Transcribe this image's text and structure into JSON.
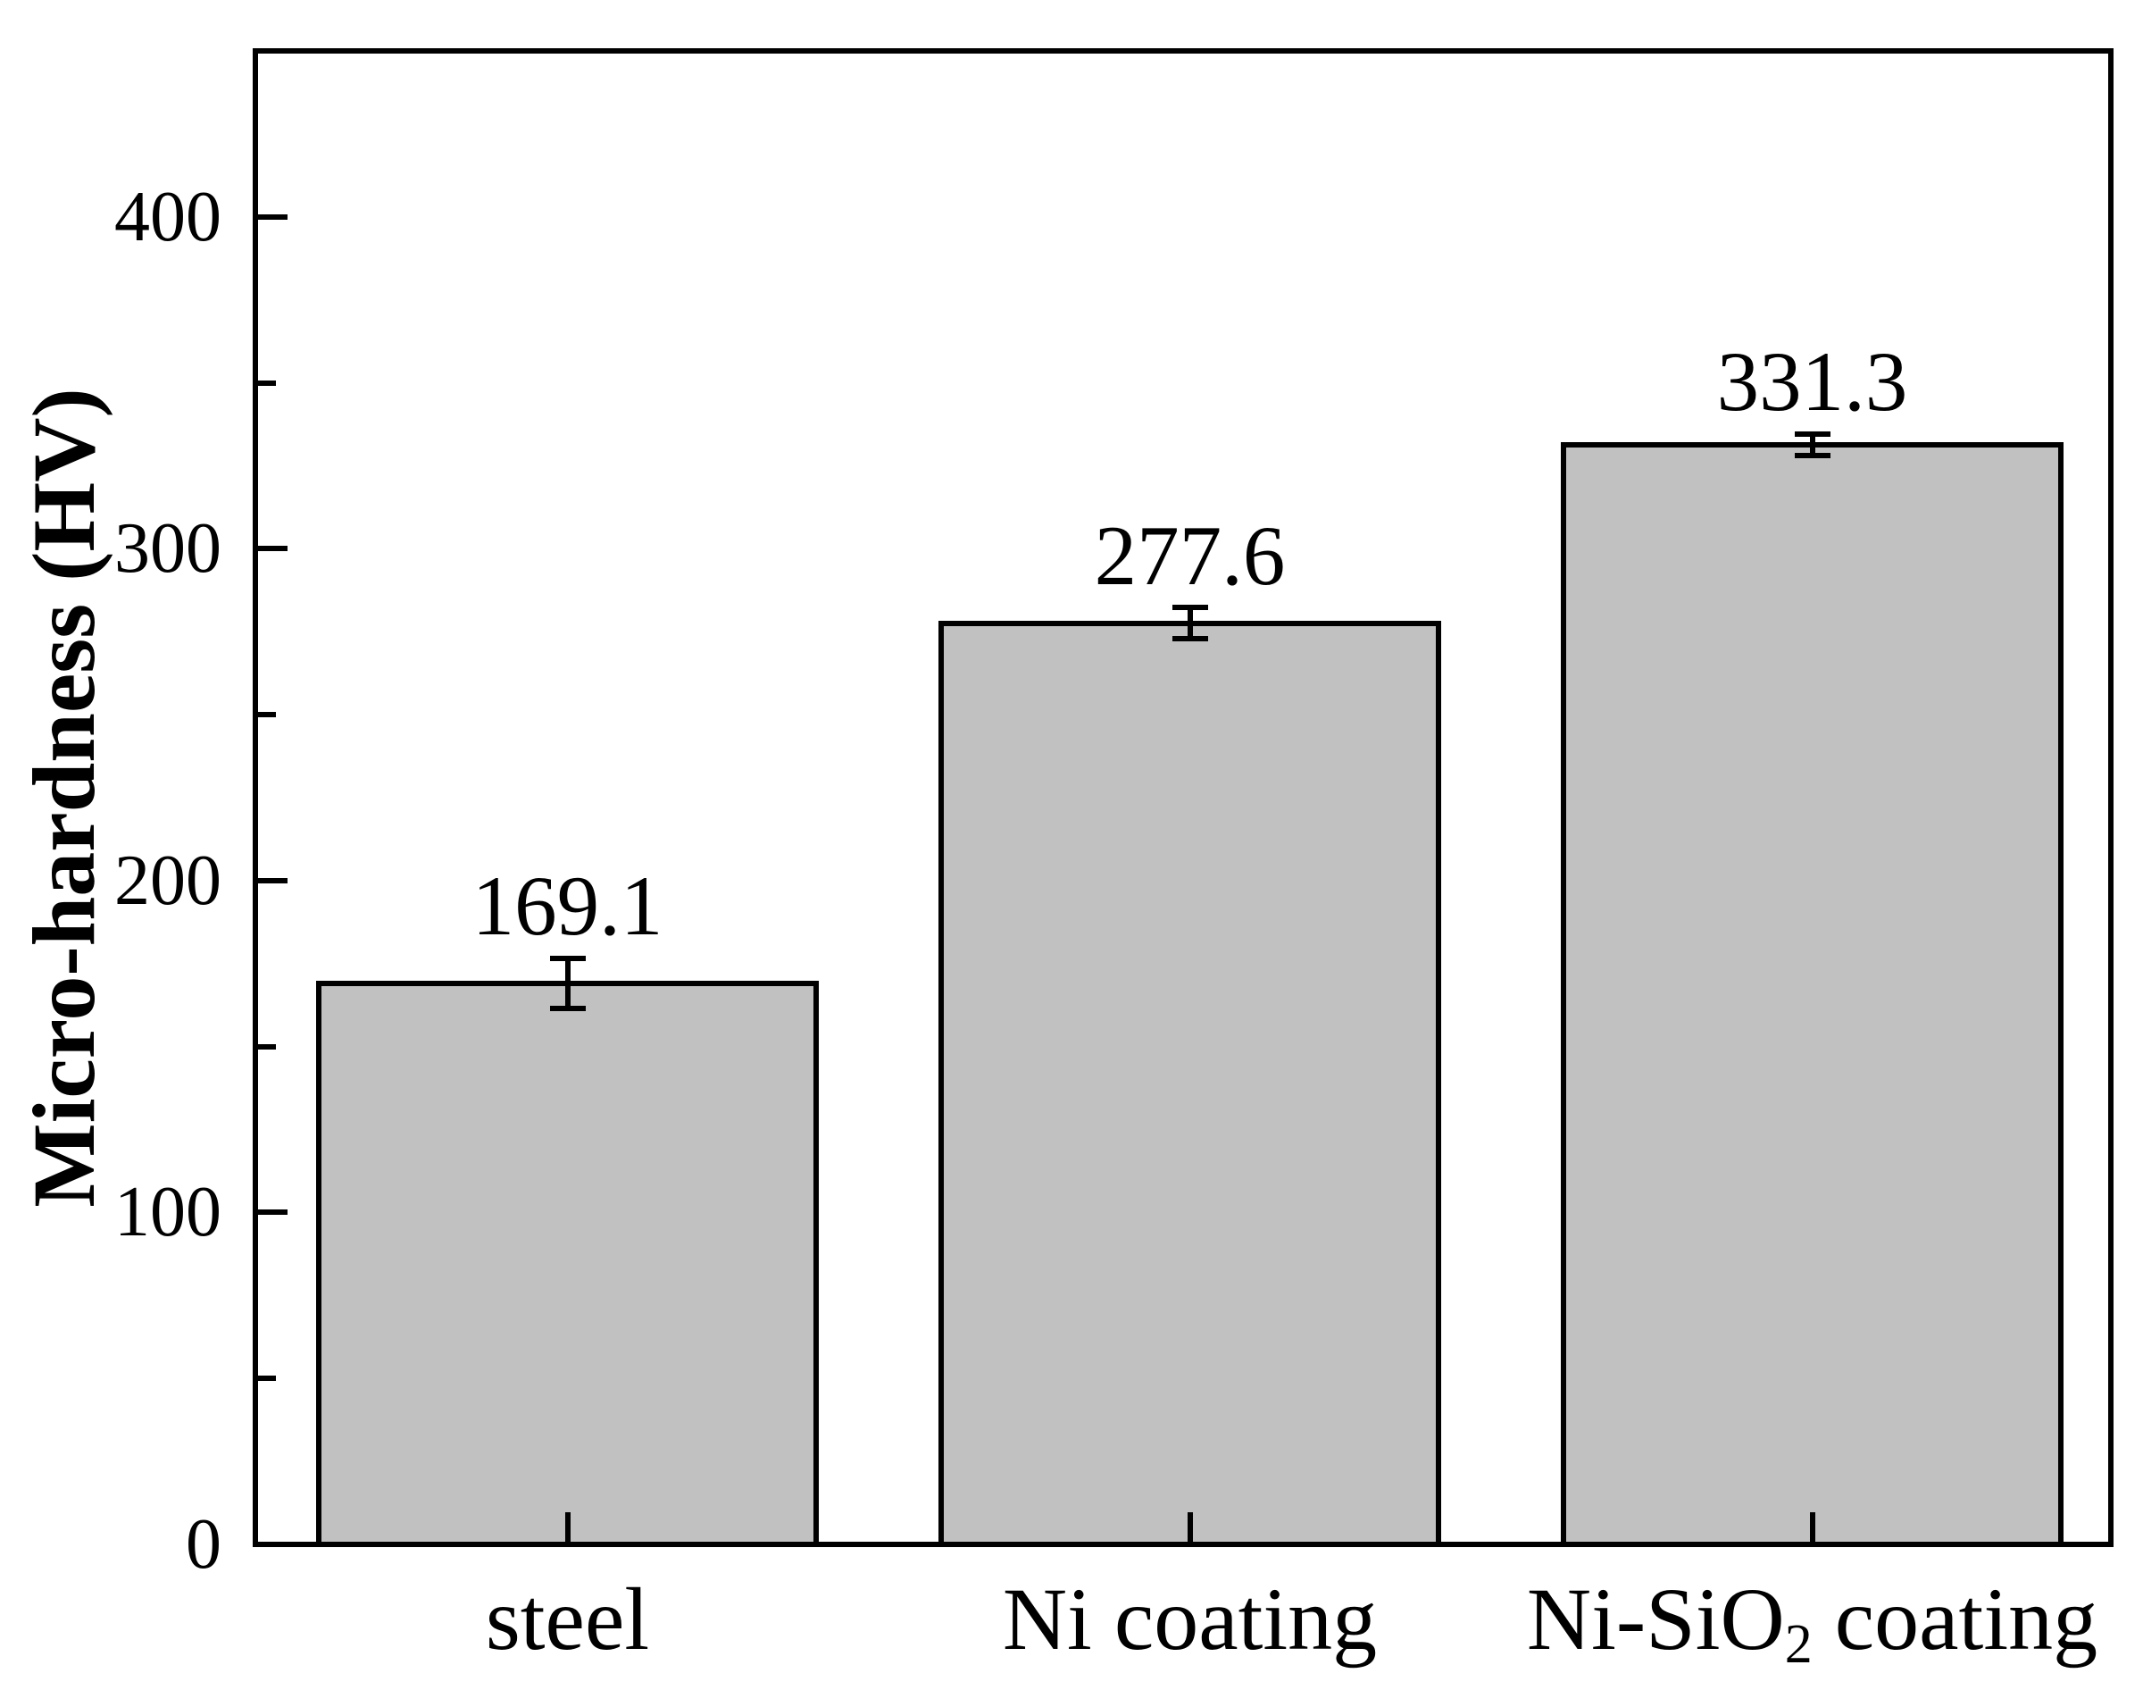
{
  "chart_data": {
    "type": "bar",
    "title": "",
    "xlabel": "",
    "ylabel": "Micro-hardness (HV)",
    "categories": [
      "steel",
      "Ni coating",
      "Ni-SiO2 coating"
    ],
    "categories_rich": [
      [
        {
          "t": "steel"
        }
      ],
      [
        {
          "t": "Ni coating"
        }
      ],
      [
        {
          "t": "Ni-SiO"
        },
        {
          "t": "2",
          "sub": true
        },
        {
          "t": " coating"
        }
      ]
    ],
    "values": [
      169.1,
      277.6,
      331.3
    ],
    "value_labels": [
      "169.1",
      "277.6",
      "331.3"
    ],
    "errors": [
      7.5,
      4.6,
      3.2
    ],
    "ylim": [
      0,
      450
    ],
    "yticks_major": [
      0,
      100,
      200,
      300,
      400
    ],
    "ytick_labels": [
      "0",
      "100",
      "200",
      "300",
      "400"
    ],
    "yticks_minor": [
      50,
      150,
      250,
      350
    ],
    "grid": false,
    "legend": "none",
    "bar_fill_color": "#c1c1c1",
    "bar_border_color": "#000000",
    "error_bar_color": "#000000",
    "text_color": "#000000",
    "background_color": "#ffffff"
  }
}
